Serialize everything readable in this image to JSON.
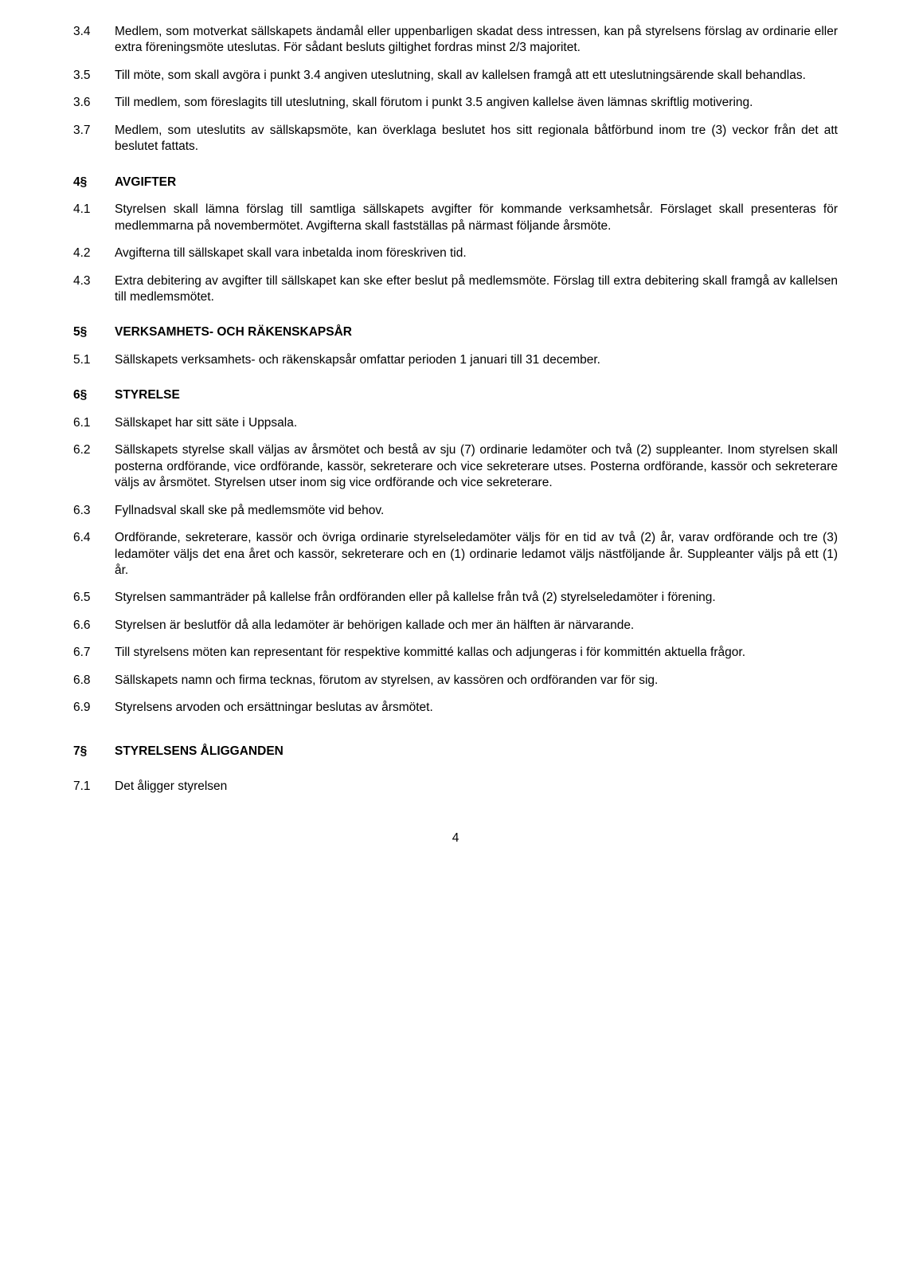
{
  "rows": [
    {
      "n": "3.4",
      "t": "Medlem, som motverkat sällskapets ändamål eller uppenbarligen skadat dess intressen, kan på styrelsens förslag av ordinarie eller extra föreningsmöte uteslutas. För sådant besluts giltighet fordras minst 2/3 majoritet."
    },
    {
      "n": "3.5",
      "t": "Till möte, som skall avgöra i punkt 3.4 angiven uteslutning, skall av kallelsen framgå att ett uteslutningsärende skall behandlas."
    },
    {
      "n": "3.6",
      "t": "Till medlem, som föreslagits till uteslutning, skall förutom i punkt 3.5 angiven kallelse även lämnas skriftlig motivering."
    },
    {
      "n": "3.7",
      "t": "Medlem, som uteslutits av sällskapsmöte, kan överklaga beslutet hos sitt regionala båtförbund inom tre (3) veckor från det att beslutet fattats."
    }
  ],
  "s4": {
    "n": "4§",
    "t": "AVGIFTER"
  },
  "s4rows": [
    {
      "n": "4.1",
      "t": "Styrelsen skall lämna förslag till samtliga sällskapets avgifter för kommande verksamhetsår. Förslaget skall presenteras för medlemmarna på novembermötet. Avgifterna skall fastställas på närmast följande årsmöte."
    },
    {
      "n": "4.2",
      "t": "Avgifterna till sällskapet skall vara inbetalda inom föreskriven tid."
    },
    {
      "n": "4.3",
      "t": "Extra debitering av avgifter till sällskapet kan ske efter beslut på medlemsmöte. Förslag till extra debitering skall framgå av kallelsen till medlemsmötet."
    }
  ],
  "s5": {
    "n": "5§",
    "t": "VERKSAMHETS- OCH RÄKENSKAPSÅR"
  },
  "s5rows": [
    {
      "n": "5.1",
      "t": "Sällskapets verksamhets- och räkenskapsår omfattar perioden 1 januari till 31 december."
    }
  ],
  "s6": {
    "n": "6§",
    "t": "STYRELSE"
  },
  "s6rows": [
    {
      "n": "6.1",
      "t": "Sällskapet har sitt säte i Uppsala."
    },
    {
      "n": "6.2",
      "t": "Sällskapets styrelse skall väljas av årsmötet och bestå av sju (7) ordinarie ledamöter och två (2) suppleanter. Inom styrelsen skall posterna ordförande, vice ordförande, kassör, sekreterare och vice sekreterare utses. Posterna ordförande, kassör och sekreterare väljs av årsmötet. Styrelsen utser inom sig vice ordförande och vice sekreterare."
    },
    {
      "n": "6.3",
      "t": "Fyllnadsval skall ske på medlemsmöte vid behov."
    },
    {
      "n": "6.4",
      "t": "Ordförande, sekreterare, kassör och övriga ordinarie styrelseledamöter väljs för en tid av två (2) år, varav ordförande och tre (3) ledamöter väljs det ena året och kassör, sekreterare och en (1) ordinarie ledamot väljs nästföljande år. Suppleanter väljs på ett (1) år."
    },
    {
      "n": "6.5",
      "t": "Styrelsen sammanträder på kallelse från ordföranden eller på kallelse från två (2) styrelseledamöter i förening."
    },
    {
      "n": "6.6",
      "t": "Styrelsen är beslutför då alla ledamöter är behörigen kallade och mer än hälften är närvarande."
    },
    {
      "n": "6.7",
      "t": "Till styrelsens möten kan representant för respektive kommitté kallas och adjungeras i för kommittén aktuella frågor."
    },
    {
      "n": "6.8",
      "t": "Sällskapets namn och firma tecknas, förutom av styrelsen, av kassören och ordföranden var för sig."
    },
    {
      "n": "6.9",
      "t": "Styrelsens arvoden och ersättningar beslutas av årsmötet."
    }
  ],
  "s7": {
    "n": "7§",
    "t": "STYRELSENS ÅLIGGANDEN"
  },
  "s7rows": [
    {
      "n": "7.1",
      "t": "Det åligger styrelsen"
    }
  ],
  "page": "4"
}
